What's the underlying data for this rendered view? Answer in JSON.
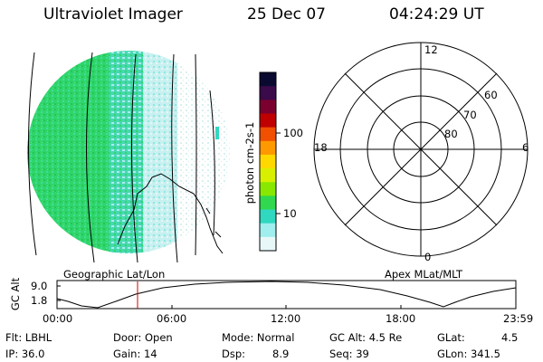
{
  "header": {
    "instrument": "Ultraviolet Imager",
    "date": "25 Dec 07",
    "time": "04:24:29 UT"
  },
  "colorbar": {
    "unit_label": "photon cm-2s-1",
    "ticks": [
      "100",
      "10"
    ],
    "colors": [
      "#0a0a30",
      "#3a0a4a",
      "#7a0030",
      "#c00000",
      "#f05000",
      "#ff9900",
      "#ffd800",
      "#d8f000",
      "#88e800",
      "#30d850",
      "#30d8c0",
      "#a0eeee",
      "#e8f8f8"
    ]
  },
  "polar_plot": {
    "mlt_labels": {
      "top": "12",
      "bottom": "0",
      "left": "18",
      "right": "6"
    },
    "mlat_labels": [
      "60",
      "70",
      "80"
    ]
  },
  "timeline": {
    "axis_label": "GC Alt",
    "y_ticks": [
      "9.0",
      "1.8"
    ],
    "left_caption": "Geographic Lat/Lon",
    "right_caption": "Apex MLat/MLT",
    "x_ticks": [
      "00:00",
      "06:00",
      "12:00",
      "18:00",
      "23:59"
    ],
    "marker_color": "#cc0000"
  },
  "info": {
    "filter": "Flt: LBHL",
    "ip": "IP: 36.0",
    "door": "Door: Open",
    "gain": "Gain: 14",
    "mode": "Mode: Normal",
    "dsp": "Dsp:",
    "dsp_value": "8.9",
    "gc_alt": "GC Alt: 4.5 Re",
    "seq": "Seq: 39",
    "glat": "GLat:",
    "glat_value": "4.5",
    "glon": "GLon: 341.5"
  }
}
